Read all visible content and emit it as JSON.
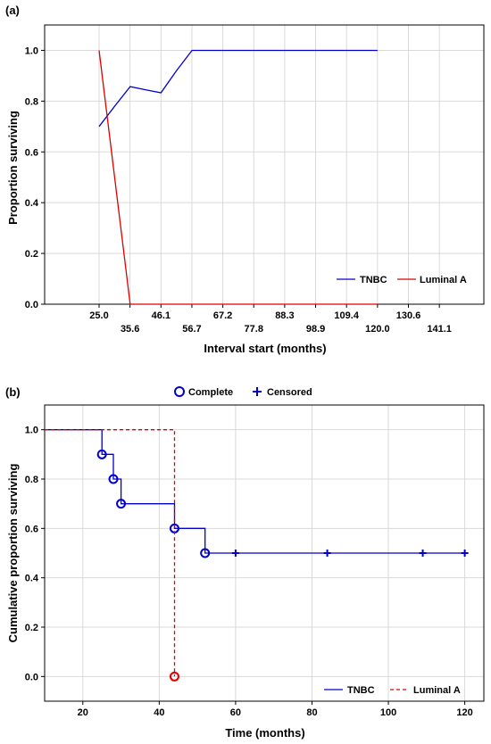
{
  "chart_data": [
    {
      "type": "line",
      "panel_label": "(a)",
      "xlabel": "Interval start (months)",
      "ylabel": "Proportion surviving",
      "ylim": [
        0,
        1.1
      ],
      "yticks": [
        "0.0",
        "0.2",
        "0.4",
        "0.6",
        "0.8",
        "1.0"
      ],
      "x_tick_labels_upper": [
        "25.0",
        "46.1",
        "67.2",
        "88.3",
        "109.4",
        "130.6"
      ],
      "x_tick_labels_lower": [
        "35.6",
        "56.7",
        "77.8",
        "98.9",
        "120.0",
        "141.1"
      ],
      "grid": true,
      "legend_position": "bottom-right",
      "series": [
        {
          "name": "TNBC",
          "color": "#0000cc",
          "x": [
            25.0,
            30.3,
            35.6,
            40.8,
            46.1,
            51.4,
            56.7,
            62.0,
            67.2,
            72.5,
            77.8,
            83.0,
            88.3,
            93.6,
            98.9,
            104.2,
            109.4,
            114.7,
            120.0
          ],
          "y": [
            0.7,
            0.78,
            0.857,
            0.845,
            0.833,
            0.92,
            1.0,
            1.0,
            1.0,
            1.0,
            1.0,
            1.0,
            1.0,
            1.0,
            1.0,
            1.0,
            1.0,
            1.0,
            1.0
          ]
        },
        {
          "name": "Luminal A",
          "color": "#dd0000",
          "x": [
            25.0,
            35.6,
            120.0
          ],
          "y": [
            1.0,
            0.0,
            0.0
          ]
        }
      ]
    },
    {
      "type": "line",
      "panel_label": "(b)",
      "xlabel": "Time (months)",
      "ylabel": "Cumulative proportion surviving",
      "xlim": [
        10,
        125
      ],
      "ylim": [
        -0.1,
        1.1
      ],
      "xticks": [
        "20",
        "40",
        "60",
        "80",
        "100",
        "120"
      ],
      "yticks": [
        "0.0",
        "0.2",
        "0.4",
        "0.6",
        "0.8",
        "1.0"
      ],
      "grid": true,
      "marker_legend": {
        "complete": "Complete",
        "censored": "Censored"
      },
      "legend_position": "bottom-right",
      "series": [
        {
          "name": "TNBC",
          "color": "#0000cc",
          "steps": [
            [
              10,
              1.0
            ],
            [
              25,
              0.9
            ],
            [
              28,
              0.8
            ],
            [
              30,
              0.7
            ],
            [
              44,
              0.6
            ],
            [
              52,
              0.5
            ],
            [
              120,
              0.5
            ]
          ],
          "complete": [
            [
              25,
              0.9
            ],
            [
              28,
              0.8
            ],
            [
              30,
              0.7
            ],
            [
              44,
              0.6
            ],
            [
              52,
              0.5
            ]
          ],
          "censored": [
            [
              60,
              0.5
            ],
            [
              84,
              0.5
            ],
            [
              109,
              0.5
            ],
            [
              120,
              0.5
            ]
          ]
        },
        {
          "name": "Luminal A",
          "color": "#dd0000",
          "steps": [
            [
              10,
              1.0
            ],
            [
              44,
              0.0
            ]
          ],
          "complete": [
            [
              44,
              0.0
            ]
          ],
          "censored": []
        }
      ]
    }
  ]
}
